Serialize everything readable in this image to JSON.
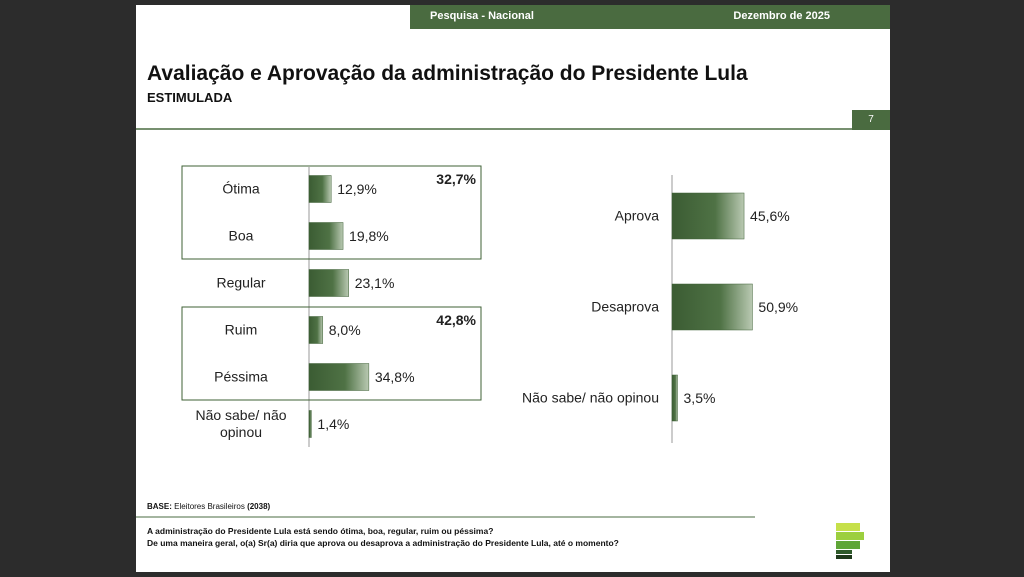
{
  "header": {
    "survey": "Pesquisa - Nacional",
    "date": "Dezembro de 2025",
    "title": "Avaliação e Aprovação da administração do Presidente Lula",
    "subtitle": "ESTIMULADA",
    "page": "7"
  },
  "chart_data": [
    {
      "type": "bar",
      "orientation": "horizontal",
      "categories": [
        "Ótima",
        "Boa",
        "Regular",
        "Ruim",
        "Péssima",
        "Não sabe/ não opinou"
      ],
      "values": [
        12.9,
        19.8,
        23.1,
        8.0,
        34.8,
        1.4
      ],
      "value_labels": [
        "12,9%",
        "19,8%",
        "23,1%",
        "8,0%",
        "34,8%",
        "1,4%"
      ],
      "color": "#3f6136",
      "groups": [
        {
          "first": 0,
          "last": 1,
          "total": 32.7,
          "total_label": "32,7%"
        },
        {
          "first": 3,
          "last": 4,
          "total": 42.8,
          "total_label": "42,8%"
        }
      ]
    },
    {
      "type": "bar",
      "orientation": "horizontal",
      "categories": [
        "Aprova",
        "Desaprova",
        "Não sabe/ não opinou"
      ],
      "values": [
        45.6,
        50.9,
        3.5
      ],
      "value_labels": [
        "45,6%",
        "50,9%",
        "3,5%"
      ],
      "color": "#3f6136"
    }
  ],
  "footer": {
    "base_label": "BASE:",
    "base_text": "Eleitores Brasileiros",
    "base_n": "(2038)",
    "question_1": "A administração do Presidente Lula está sendo ótima, boa, regular, ruim ou péssima?",
    "question_2": "De uma maneira geral, o(a) Sr(a) diria que aprova ou desaprova a administração do Presidente Lula, até o momento?"
  }
}
